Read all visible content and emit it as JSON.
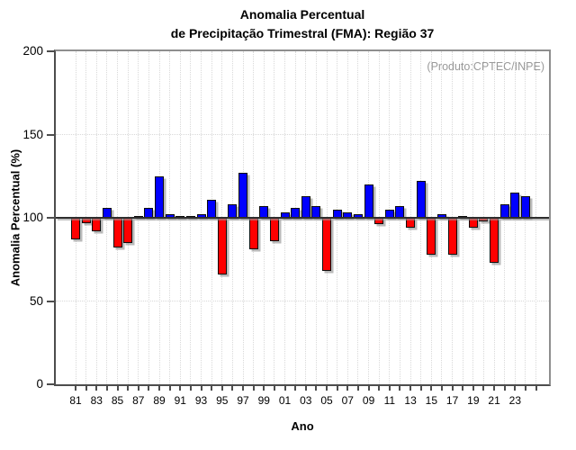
{
  "title": {
    "line1": "Anomalia Percentual",
    "line2": "de Precipitação Trimestral (FMA): Região 37"
  },
  "chart_data": {
    "type": "bar",
    "title": "Anomalia Percentual de Precipitação Trimestral (FMA): Região 37",
    "title_lines": [
      "Anomalia Percentual",
      "de Precipitação Trimestral (FMA): Região 37"
    ],
    "xlabel": "Ano",
    "ylabel": "Anomalia Percentual (%)",
    "annotation": "(Produto:CPTEC/INPE)",
    "ylim": [
      0,
      200
    ],
    "yticks": [
      0,
      50,
      100,
      150,
      200
    ],
    "baseline": 100,
    "grid": "dotted",
    "legend": "none",
    "xtick_labels": [
      "81",
      "83",
      "85",
      "87",
      "89",
      "91",
      "93",
      "95",
      "97",
      "99",
      "01",
      "03",
      "05",
      "07",
      "09",
      "11",
      "13",
      "15",
      "17",
      "19",
      "21",
      "23"
    ],
    "years": [
      1981,
      1982,
      1983,
      1984,
      1985,
      1986,
      1987,
      1988,
      1989,
      1990,
      1991,
      1992,
      1993,
      1994,
      1995,
      1996,
      1997,
      1998,
      1999,
      2000,
      2001,
      2002,
      2003,
      2004,
      2005,
      2006,
      2007,
      2008,
      2009,
      2010,
      2011,
      2012,
      2013,
      2014,
      2015,
      2016,
      2017,
      2018,
      2019,
      2020,
      2021,
      2022,
      2023,
      2024
    ],
    "values": [
      87,
      97,
      92,
      106,
      82,
      85,
      101,
      106,
      125,
      102,
      101,
      101,
      102,
      111,
      66,
      108,
      127,
      81,
      107,
      86,
      103,
      106,
      113,
      107,
      68,
      105,
      103,
      102,
      120,
      96,
      105,
      107,
      94,
      122,
      78,
      102,
      78,
      101,
      94,
      98,
      73,
      108,
      115,
      113
    ],
    "colors": {
      "above_baseline": "#0000ff",
      "below_baseline": "#ff0000",
      "bar_outline": "#0d0d0d",
      "baseline_line": "#2e2e2e",
      "annotation_text": "#9a9a9a",
      "grid": "#d9d9d9"
    }
  }
}
